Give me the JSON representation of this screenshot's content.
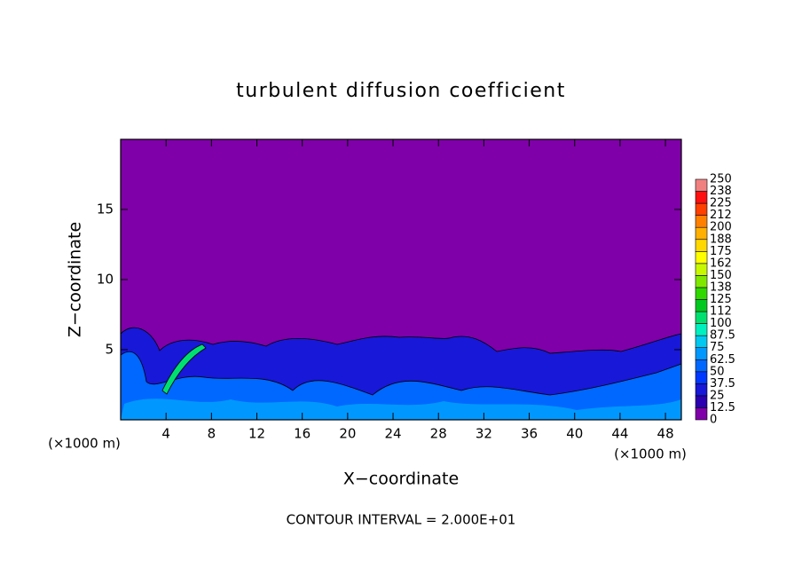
{
  "chart_data": {
    "type": "contour",
    "title": "turbulent diffusion coefficient",
    "x_label": "X−coordinate",
    "y_label": "Z−coordinate",
    "x_units": "(×1000 m)",
    "y_units": "(×1000 m)",
    "footer": "CONTOUR INTERVAL = 2.000E+01",
    "xlim": [
      0,
      49.4
    ],
    "ylim": [
      0,
      20
    ],
    "xticks": [
      4,
      8,
      12,
      16,
      20,
      24,
      28,
      32,
      36,
      40,
      44,
      48
    ],
    "yticks": [
      5,
      10,
      15
    ],
    "colorbar": {
      "levels": [
        0,
        12.5,
        25,
        37.5,
        50,
        62.5,
        75,
        87.5,
        100,
        {
          "value": 112.5,
          "label": "112"
        },
        125,
        {
          "value": 137.5,
          "label": "138"
        },
        150,
        {
          "value": 162.5,
          "label": "162"
        },
        175,
        {
          "value": 187.5,
          "label": "188"
        },
        200,
        {
          "value": 212.5,
          "label": "212"
        },
        225,
        {
          "value": 237.5,
          "label": "238"
        },
        250
      ],
      "colors": [
        "#7f00a8",
        "#2a00b0",
        "#1818d8",
        "#0038ff",
        "#0068ff",
        "#0098ff",
        "#00c8f0",
        "#00f0c0",
        "#00e070",
        "#00c820",
        "#30d800",
        "#80e800",
        "#c8f800",
        "#ffff00",
        "#ffd800",
        "#ffb000",
        "#ff8000",
        "#ff4000",
        "#ff1010",
        "#f08080"
      ]
    }
  }
}
